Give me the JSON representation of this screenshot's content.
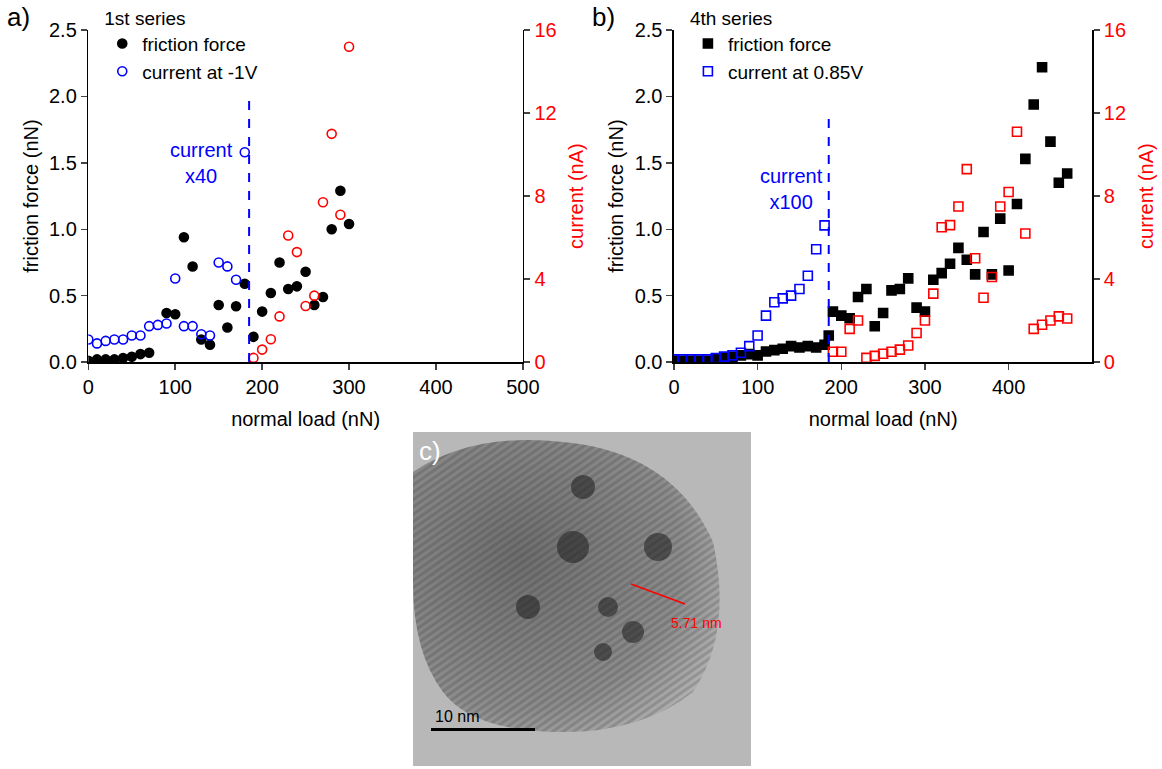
{
  "chart_data": [
    {
      "type": "scatter",
      "panel": "a)",
      "legend_title": "1st series",
      "legend": "top left",
      "x_label": "normal load (nN)",
      "y_label": "friction force (nN)",
      "y2_label": "current (nA)",
      "y2_color": "#ff0000",
      "xlim": [
        0,
        500
      ],
      "xticks": [
        0,
        100,
        200,
        300,
        400,
        500
      ],
      "ylim": [
        0,
        2.5
      ],
      "yticks": [
        {
          "value": 0,
          "label": "0.0"
        },
        {
          "value": 0.5,
          "label": "0.5"
        },
        {
          "value": 1,
          "label": "1.0"
        },
        {
          "value": 1.5,
          "label": "1.5"
        },
        {
          "value": 2,
          "label": "2.0"
        },
        {
          "value": 2.5,
          "label": "2.5"
        }
      ],
      "y2lim": [
        0,
        16
      ],
      "y2ticks": [
        0,
        4,
        8,
        12,
        16
      ],
      "grid": false,
      "series": [
        {
          "name": "friction force",
          "color": "#000000",
          "marker": "circle",
          "x": [
            0,
            10,
            20,
            30,
            40,
            50,
            60,
            70,
            90,
            100,
            110,
            120,
            130,
            140,
            150,
            160,
            170,
            180,
            190,
            200,
            210,
            220,
            230,
            240,
            250,
            260,
            270,
            280,
            290,
            300
          ],
          "values": [
            0.01,
            0.02,
            0.02,
            0.02,
            0.03,
            0.04,
            0.06,
            0.07,
            0.37,
            0.36,
            0.94,
            0.72,
            0.17,
            0.13,
            0.43,
            0.26,
            0.42,
            0.59,
            0.19,
            0.38,
            0.52,
            0.75,
            0.55,
            0.57,
            0.68,
            0.43,
            0.49,
            1.0,
            1.29,
            1.04
          ]
        },
        {
          "name": "current at -1V",
          "axis": "y2",
          "marker": "circle-open",
          "x": [
            0,
            10,
            20,
            30,
            40,
            50,
            60,
            70,
            80,
            90,
            100,
            110,
            120,
            130,
            140,
            150,
            160,
            170,
            180,
            190,
            200,
            210,
            220,
            230,
            240,
            250,
            260,
            270,
            280,
            290,
            300
          ],
          "values": [
            1.09,
            0.9,
            1.02,
            1.09,
            1.09,
            1.28,
            1.28,
            1.73,
            1.79,
            1.86,
            4.03,
            1.73,
            1.73,
            1.34,
            1.28,
            4.8,
            4.61,
            3.97,
            10.11,
            0.2,
            0.6,
            1.1,
            2.2,
            6.1,
            5.3,
            2.7,
            3.2,
            7.7,
            11.0,
            7.1,
            15.2
          ],
          "colors": [
            "#0000ff",
            "#0000ff",
            "#0000ff",
            "#0000ff",
            "#0000ff",
            "#0000ff",
            "#0000ff",
            "#0000ff",
            "#0000ff",
            "#0000ff",
            "#0000ff",
            "#0000ff",
            "#0000ff",
            "#0000ff",
            "#0000ff",
            "#0000ff",
            "#0000ff",
            "#0000ff",
            "#0000ff",
            "#ff0000",
            "#ff0000",
            "#ff0000",
            "#ff0000",
            "#ff0000",
            "#ff0000",
            "#ff0000",
            "#ff0000",
            "#ff0000",
            "#ff0000",
            "#ff0000",
            "#ff0000"
          ]
        }
      ],
      "vline": {
        "x": 185,
        "y_end": 1.99,
        "color": "#0000ff",
        "line_style": "dash"
      },
      "annotations": [
        {
          "text": "current x40",
          "color": "#0000ff"
        }
      ]
    },
    {
      "type": "scatter",
      "panel": "b)",
      "legend_title": "4th series",
      "legend": "top left",
      "x_label": "normal load (nN)",
      "y_label": "friction force (nN)",
      "y2_label": "current (nA)",
      "y2_color": "#ff0000",
      "xlim": [
        0,
        500
      ],
      "xticks": [
        0,
        100,
        200,
        300,
        400
      ],
      "ylim": [
        0,
        2.5
      ],
      "yticks": [
        {
          "value": 0,
          "label": "0.0"
        },
        {
          "value": 0.5,
          "label": "0.5"
        },
        {
          "value": 1,
          "label": "1.0"
        },
        {
          "value": 1.5,
          "label": "1.5"
        },
        {
          "value": 2,
          "label": "2.0"
        },
        {
          "value": 2.5,
          "label": "2.5"
        }
      ],
      "y2lim": [
        0,
        16
      ],
      "y2ticks": [
        0,
        4,
        8,
        12,
        16
      ],
      "grid": false,
      "series": [
        {
          "name": "friction force",
          "color": "#000000",
          "marker": "square",
          "x": [
            0,
            10,
            20,
            30,
            40,
            50,
            60,
            70,
            80,
            90,
            100,
            110,
            120,
            130,
            140,
            150,
            160,
            170,
            180,
            185,
            190,
            200,
            210,
            220,
            230,
            240,
            250,
            260,
            270,
            280,
            290,
            300,
            310,
            320,
            330,
            340,
            350,
            360,
            370,
            380,
            390,
            400,
            410,
            420,
            430,
            440,
            450,
            460,
            470
          ],
          "values": [
            0.01,
            0.01,
            0.01,
            0.01,
            0.01,
            0.02,
            0.03,
            0.04,
            0.05,
            0.06,
            0.05,
            0.08,
            0.09,
            0.1,
            0.12,
            0.11,
            0.12,
            0.11,
            0.13,
            0.2,
            0.38,
            0.35,
            0.33,
            0.49,
            0.55,
            0.27,
            0.37,
            0.54,
            0.55,
            0.63,
            0.41,
            0.38,
            0.62,
            0.67,
            0.74,
            0.86,
            0.77,
            0.66,
            0.98,
            0.66,
            1.08,
            0.69,
            1.19,
            1.53,
            1.94,
            2.22,
            1.66,
            1.35,
            1.42
          ]
        },
        {
          "name": "current at 0.85V",
          "axis": "y2",
          "marker": "square-open",
          "x": [
            0,
            10,
            20,
            30,
            40,
            50,
            60,
            70,
            80,
            90,
            100,
            110,
            120,
            130,
            140,
            150,
            160,
            170,
            180,
            190,
            200,
            210,
            220,
            230,
            240,
            250,
            260,
            270,
            280,
            290,
            300,
            310,
            320,
            330,
            340,
            350,
            360,
            370,
            380,
            390,
            400,
            410,
            420,
            430,
            440,
            450,
            460,
            470
          ],
          "values": [
            0.13,
            0.13,
            0.13,
            0.13,
            0.13,
            0.19,
            0.26,
            0.32,
            0.45,
            0.77,
            1.28,
            2.24,
            2.88,
            3.07,
            3.2,
            3.52,
            4.16,
            5.44,
            6.59,
            0.5,
            0.5,
            1.6,
            2.0,
            0.2,
            0.3,
            0.4,
            0.5,
            0.6,
            0.8,
            1.4,
            2.0,
            3.3,
            6.5,
            6.6,
            7.5,
            9.3,
            5.0,
            3.1,
            4.1,
            7.5,
            8.2,
            11.1,
            6.2,
            1.6,
            1.8,
            2.0,
            2.2,
            2.1
          ],
          "colors": [
            "#0000ff",
            "#0000ff",
            "#0000ff",
            "#0000ff",
            "#0000ff",
            "#0000ff",
            "#0000ff",
            "#0000ff",
            "#0000ff",
            "#0000ff",
            "#0000ff",
            "#0000ff",
            "#0000ff",
            "#0000ff",
            "#0000ff",
            "#0000ff",
            "#0000ff",
            "#0000ff",
            "#0000ff",
            "#ff0000",
            "#ff0000",
            "#ff0000",
            "#ff0000",
            "#ff0000",
            "#ff0000",
            "#ff0000",
            "#ff0000",
            "#ff0000",
            "#ff0000",
            "#ff0000",
            "#ff0000",
            "#ff0000",
            "#ff0000",
            "#ff0000",
            "#ff0000",
            "#ff0000",
            "#ff0000",
            "#ff0000",
            "#ff0000",
            "#ff0000",
            "#ff0000",
            "#ff0000",
            "#ff0000",
            "#ff0000",
            "#ff0000",
            "#ff0000",
            "#ff0000",
            "#ff0000"
          ]
        }
      ],
      "vline": {
        "x": 185,
        "y_end": 1.86,
        "color": "#0000ff",
        "line_style": "dash"
      },
      "annotations": [
        {
          "text": "current x100",
          "color": "#0000ff"
        }
      ]
    }
  ],
  "image": {
    "type": "micrograph",
    "panel": "c)",
    "scale_bar": "10 nm",
    "measurement": "5.71 nm",
    "measurement_color": "#ff0000"
  }
}
